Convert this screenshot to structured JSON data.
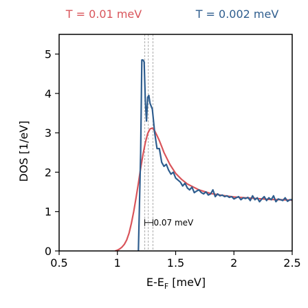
{
  "chart_data": {
    "type": "line",
    "xlabel_main": "E-E",
    "xlabel_sub": "F",
    "xlabel_unit": " [meV]",
    "ylabel": "DOS [1/eV]",
    "xlim": [
      0.5,
      2.5
    ],
    "ylim": [
      0,
      5.5
    ],
    "x_ticks": [
      0.5,
      1,
      1.5,
      2,
      2.5
    ],
    "x_tick_labels": [
      "0.5",
      "1",
      "1.5",
      "2",
      "2.5"
    ],
    "y_ticks": [
      0,
      1,
      2,
      3,
      4,
      5
    ],
    "y_tick_labels": [
      "0",
      "1",
      "2",
      "3",
      "4",
      "5"
    ],
    "grid": false,
    "legend_position": "top",
    "series": [
      {
        "name": "T = 0.01 meV",
        "color": "#d9545a",
        "x": [
          0.98,
          1.0,
          1.02,
          1.04,
          1.06,
          1.08,
          1.1,
          1.12,
          1.14,
          1.16,
          1.18,
          1.2,
          1.22,
          1.24,
          1.26,
          1.28,
          1.3,
          1.32,
          1.34,
          1.36,
          1.38,
          1.4,
          1.45,
          1.5,
          1.55,
          1.6,
          1.7,
          1.8,
          1.9,
          2.0,
          2.1,
          2.2,
          2.3,
          2.4,
          2.5
        ],
        "y": [
          0.0,
          0.02,
          0.05,
          0.1,
          0.17,
          0.28,
          0.45,
          0.7,
          1.0,
          1.35,
          1.72,
          2.1,
          2.45,
          2.75,
          2.98,
          3.1,
          3.12,
          3.05,
          2.93,
          2.8,
          2.65,
          2.5,
          2.2,
          1.97,
          1.82,
          1.7,
          1.55,
          1.46,
          1.41,
          1.37,
          1.35,
          1.33,
          1.31,
          1.3,
          1.29
        ]
      },
      {
        "name": "T = 0.002 meV",
        "color": "#2e5d8e",
        "x": [
          1.18,
          1.2,
          1.21,
          1.22,
          1.23,
          1.24,
          1.25,
          1.26,
          1.27,
          1.28,
          1.3,
          1.32,
          1.34,
          1.36,
          1.38,
          1.4,
          1.42,
          1.44,
          1.46,
          1.48,
          1.5,
          1.52,
          1.54,
          1.56,
          1.58,
          1.6,
          1.62,
          1.64,
          1.66,
          1.68,
          1.7,
          1.72,
          1.74,
          1.76,
          1.78,
          1.8,
          1.82,
          1.84,
          1.86,
          1.88,
          1.9,
          1.92,
          1.94,
          1.96,
          1.98,
          2.0,
          2.02,
          2.04,
          2.06,
          2.08,
          2.1,
          2.12,
          2.14,
          2.16,
          2.18,
          2.2,
          2.22,
          2.24,
          2.26,
          2.28,
          2.3,
          2.32,
          2.34,
          2.36,
          2.38,
          2.4,
          2.42,
          2.44,
          2.46,
          2.48,
          2.5
        ],
        "y": [
          0.0,
          2.5,
          4.85,
          4.85,
          4.8,
          3.8,
          3.3,
          3.9,
          3.95,
          3.75,
          3.6,
          3.0,
          2.6,
          2.6,
          2.25,
          2.15,
          2.2,
          2.05,
          1.95,
          2.0,
          1.85,
          1.8,
          1.75,
          1.65,
          1.72,
          1.6,
          1.55,
          1.62,
          1.48,
          1.52,
          1.55,
          1.48,
          1.45,
          1.5,
          1.42,
          1.45,
          1.55,
          1.38,
          1.45,
          1.4,
          1.42,
          1.38,
          1.4,
          1.36,
          1.38,
          1.32,
          1.35,
          1.38,
          1.3,
          1.35,
          1.33,
          1.36,
          1.28,
          1.4,
          1.3,
          1.35,
          1.25,
          1.32,
          1.38,
          1.28,
          1.35,
          1.3,
          1.4,
          1.25,
          1.32,
          1.3,
          1.28,
          1.35,
          1.26,
          1.3,
          1.3
        ]
      }
    ],
    "vlines": [
      1.235,
      1.265,
      1.305
    ],
    "annotation": {
      "text": "0.07 meV",
      "x_start": 1.235,
      "x_end": 1.305,
      "y": 0.72
    }
  }
}
